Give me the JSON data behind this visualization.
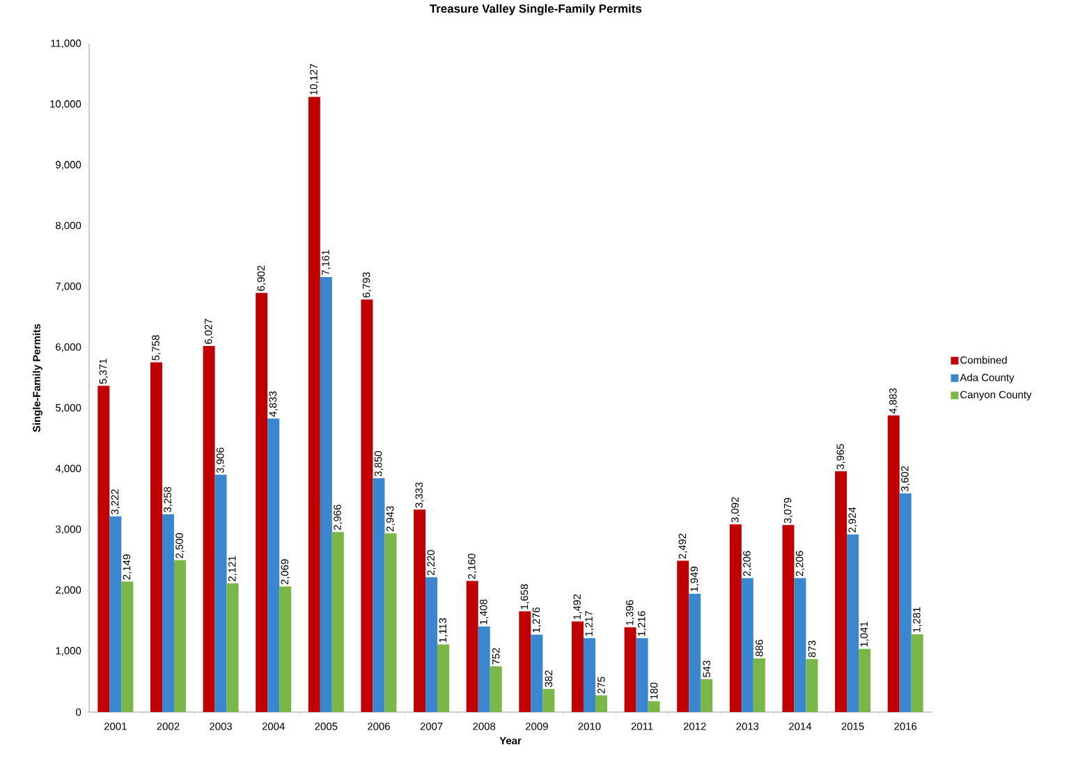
{
  "chart_data": {
    "type": "bar",
    "title": "Treasure Valley Single-Family Permits",
    "xlabel": "Year",
    "ylabel": "Single-Family Permits",
    "categories": [
      "2001",
      "2002",
      "2003",
      "2004",
      "2005",
      "2006",
      "2007",
      "2008",
      "2009",
      "2010",
      "2011",
      "2012",
      "2013",
      "2014",
      "2015",
      "2016"
    ],
    "series": [
      {
        "name": "Combined",
        "color": "#c00000",
        "values": [
          5371,
          5758,
          6027,
          6902,
          10127,
          6793,
          3333,
          2160,
          1658,
          1492,
          1396,
          2492,
          3092,
          3079,
          3965,
          4883
        ],
        "value_labels": [
          "5,371",
          "5,758",
          "6,027",
          "6,902",
          "10,127",
          "6,793",
          "3,333",
          "2,160",
          "1,658",
          "1,492",
          "1,396",
          "2,492",
          "3,092",
          "3,079",
          "3,965",
          "4,883"
        ]
      },
      {
        "name": "Ada County",
        "color": "#3a87d0",
        "values": [
          3222,
          3258,
          3906,
          4833,
          7161,
          3850,
          2220,
          1408,
          1276,
          1217,
          1216,
          1949,
          2206,
          2206,
          2924,
          3602
        ],
        "value_labels": [
          "3,222",
          "3,258",
          "3,906",
          "4,833",
          "7,161",
          "3,850",
          "2,220",
          "1,408",
          "1,276",
          "1,217",
          "1,216",
          "1,949",
          "2,206",
          "2,206",
          "2,924",
          "3,602"
        ]
      },
      {
        "name": "Canyon County",
        "color": "#7ab648",
        "values": [
          2149,
          2500,
          2121,
          2069,
          2966,
          2943,
          1113,
          752,
          382,
          275,
          180,
          543,
          886,
          873,
          1041,
          1281
        ],
        "value_labels": [
          "2,149",
          "2,500",
          "2,121",
          "2,069",
          "2,966",
          "2,943",
          "1,113",
          "752",
          "382",
          "275",
          "180",
          "543",
          "886",
          "873",
          "1,041",
          "1,281"
        ]
      }
    ],
    "ylim": [
      0,
      11000
    ],
    "yticks": [
      {
        "value": 0,
        "label": "0"
      },
      {
        "value": 1000,
        "label": "1,000"
      },
      {
        "value": 2000,
        "label": "2,000"
      },
      {
        "value": 3000,
        "label": "3,000"
      },
      {
        "value": 4000,
        "label": "4,000"
      },
      {
        "value": 5000,
        "label": "5,000"
      },
      {
        "value": 6000,
        "label": "6,000"
      },
      {
        "value": 7000,
        "label": "7,000"
      },
      {
        "value": 8000,
        "label": "8,000"
      },
      {
        "value": 9000,
        "label": "9,000"
      },
      {
        "value": 10000,
        "label": "10,000"
      },
      {
        "value": 11000,
        "label": "11,000"
      }
    ],
    "legend": "right",
    "grid": false
  }
}
